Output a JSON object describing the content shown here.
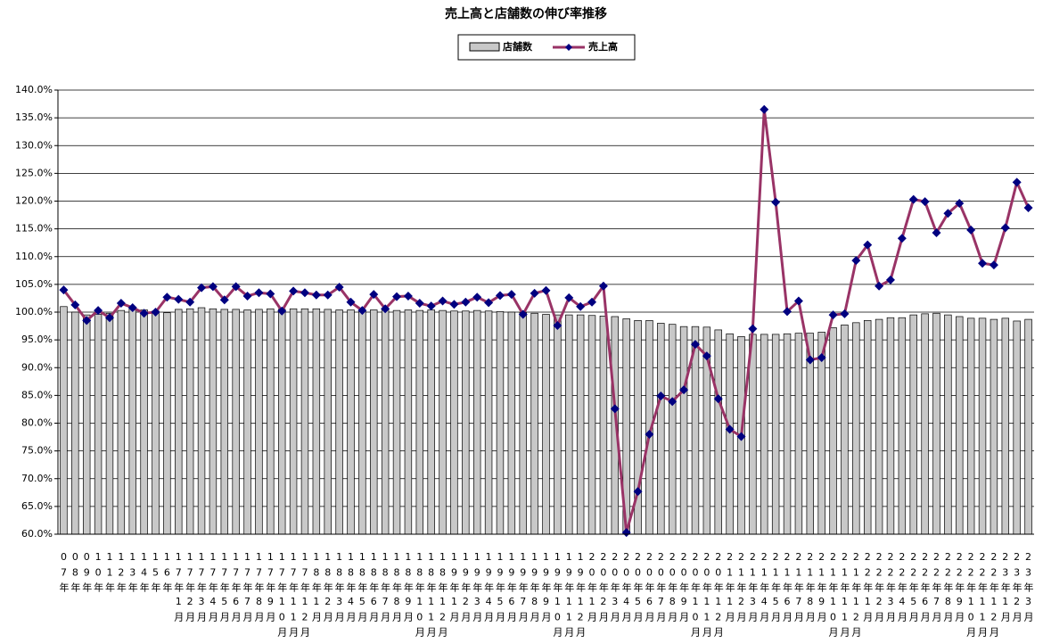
{
  "chart_data": {
    "type": "bar_line",
    "title": "売上高と店舗数の伸び率推移",
    "categories": [
      "07年",
      "08年",
      "09年",
      "10年",
      "11年",
      "12年",
      "13年",
      "14年",
      "15年",
      "16年",
      "17年1月",
      "17年2月",
      "17年3月",
      "17年4月",
      "17年5月",
      "17年6月",
      "17年7月",
      "17年8月",
      "17年9月",
      "17年10月",
      "17年11月",
      "17年12月",
      "18年1月",
      "18年2月",
      "18年3月",
      "18年4月",
      "18年5月",
      "18年6月",
      "18年7月",
      "18年8月",
      "18年9月",
      "18年10月",
      "18年11月",
      "18年12月",
      "19年1月",
      "19年2月",
      "19年3月",
      "19年4月",
      "19年5月",
      "19年6月",
      "19年7月",
      "19年8月",
      "19年9月",
      "19年10月",
      "19年11月",
      "19年12月",
      "20年1月",
      "20年2月",
      "20年3月",
      "20年4月",
      "20年5月",
      "20年6月",
      "20年7月",
      "20年8月",
      "20年9月",
      "20年10月",
      "20年11月",
      "20年12月",
      "21年1月",
      "21年2月",
      "21年3月",
      "21年4月",
      "21年5月",
      "21年6月",
      "21年7月",
      "21年8月",
      "21年9月",
      "21年10月",
      "21年11月",
      "21年12月",
      "22年1月",
      "22年2月",
      "22年3月",
      "22年4月",
      "22年5月",
      "22年6月",
      "22年7月",
      "22年8月",
      "22年9月",
      "22年10月",
      "22年11月",
      "22年12月",
      "23年1月",
      "23年2月",
      "23年3月"
    ],
    "series": [
      {
        "name": "店舗数",
        "kind": "bar",
        "color": "#c8c8c8",
        "values": [
          101.0,
          100.0,
          99.5,
          99.6,
          99.8,
          100.3,
          100.6,
          100.4,
          100.2,
          99.9,
          100.5,
          100.6,
          100.8,
          100.6,
          100.5,
          100.5,
          100.4,
          100.5,
          100.6,
          100.5,
          100.6,
          100.6,
          100.6,
          100.5,
          100.4,
          100.4,
          100.3,
          100.4,
          100.4,
          100.3,
          100.4,
          100.3,
          100.4,
          100.3,
          100.2,
          100.2,
          100.3,
          100.2,
          100.1,
          100.0,
          99.9,
          99.8,
          99.6,
          99.5,
          99.5,
          99.5,
          99.4,
          99.3,
          99.2,
          98.8,
          98.5,
          98.5,
          98.0,
          97.8,
          97.4,
          97.4,
          97.3,
          96.8,
          96.1,
          95.6,
          96.0,
          96.0,
          96.0,
          96.1,
          96.2,
          96.2,
          96.4,
          97.2,
          97.7,
          98.1,
          98.5,
          98.7,
          99.0,
          99.0,
          99.5,
          99.7,
          99.8,
          99.5,
          99.2,
          98.9,
          98.9,
          98.7,
          98.9,
          98.4,
          98.7
        ]
      },
      {
        "name": "売上高",
        "kind": "line",
        "color": "#993366",
        "marker_color": "#000080",
        "values": [
          104.0,
          101.3,
          98.5,
          100.3,
          99.0,
          101.6,
          100.8,
          99.8,
          100.0,
          102.7,
          102.3,
          101.8,
          104.4,
          104.6,
          102.2,
          104.6,
          102.9,
          103.5,
          103.3,
          100.2,
          103.8,
          103.5,
          103.1,
          103.1,
          104.5,
          101.8,
          100.3,
          103.2,
          100.6,
          102.8,
          102.9,
          101.6,
          101.1,
          102.0,
          101.4,
          101.8,
          102.7,
          101.7,
          103.0,
          103.2,
          99.6,
          103.4,
          103.9,
          97.6,
          102.6,
          101.0,
          101.8,
          104.7,
          82.6,
          60.3,
          67.7,
          78.0,
          84.9,
          83.9,
          86.0,
          94.2,
          92.1,
          84.4,
          78.9,
          77.6,
          97.0,
          136.5,
          119.8,
          100.1,
          102.0,
          91.4,
          91.8,
          99.5,
          99.7,
          109.3,
          112.1,
          104.7,
          105.8,
          113.3,
          120.3,
          119.9,
          114.3,
          117.8,
          119.6,
          114.8,
          108.8,
          108.5,
          115.2,
          123.4,
          118.8
        ]
      }
    ],
    "ylim": [
      60,
      140
    ],
    "yticks": [
      {
        "value": 60,
        "label": "60.0%"
      },
      {
        "value": 65,
        "label": "65.0%"
      },
      {
        "value": 70,
        "label": "70.0%"
      },
      {
        "value": 75,
        "label": "75.0%"
      },
      {
        "value": 80,
        "label": "80.0%"
      },
      {
        "value": 85,
        "label": "85.0%"
      },
      {
        "value": 90,
        "label": "90.0%"
      },
      {
        "value": 95,
        "label": "95.0%"
      },
      {
        "value": 100,
        "label": "100.0%"
      },
      {
        "value": 105,
        "label": "105.0%"
      },
      {
        "value": 110,
        "label": "110.0%"
      },
      {
        "value": 115,
        "label": "115.0%"
      },
      {
        "value": 120,
        "label": "120.0%"
      },
      {
        "value": 125,
        "label": "125.0%"
      },
      {
        "value": 130,
        "label": "130.0%"
      },
      {
        "value": 135,
        "label": "135.0%"
      },
      {
        "value": 140,
        "label": "140.0%"
      }
    ],
    "grid": true,
    "legend": "top"
  }
}
